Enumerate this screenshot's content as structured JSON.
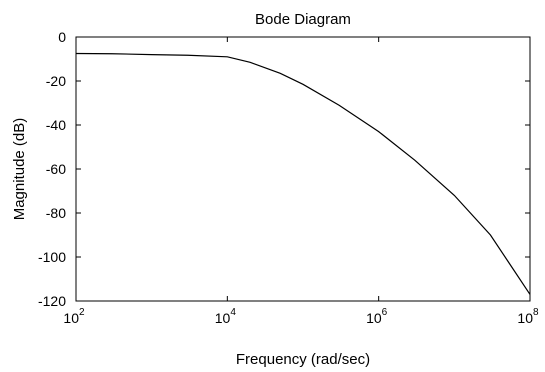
{
  "chart_data": {
    "type": "line",
    "title": "Bode Diagram",
    "xlabel": "Frequency  (rad/sec)",
    "ylabel": "Magnitude (dB)",
    "xscale": "log",
    "xlim": [
      100,
      100000000
    ],
    "ylim": [
      -120,
      0
    ],
    "grid": false,
    "x_ticks": [
      {
        "value": 100,
        "base": "10",
        "exp": "2"
      },
      {
        "value": 10000,
        "base": "10",
        "exp": "4"
      },
      {
        "value": 1000000,
        "base": "10",
        "exp": "6"
      },
      {
        "value": 100000000,
        "base": "10",
        "exp": "8"
      }
    ],
    "y_ticks": [
      0,
      -20,
      -40,
      -60,
      -80,
      -100,
      -120
    ],
    "series": [
      {
        "color": "#000000",
        "x": [
          100,
          300,
          1000,
          3000,
          10000,
          20000,
          50000,
          100000,
          300000,
          1000000,
          3000000,
          10000000,
          30000000,
          100000000
        ],
        "y": [
          -7.5,
          -7.6,
          -8.0,
          -8.3,
          -9.0,
          -11.5,
          -16.5,
          -21.5,
          -31,
          -43,
          -56,
          -72,
          -90,
          -117
        ]
      }
    ]
  }
}
